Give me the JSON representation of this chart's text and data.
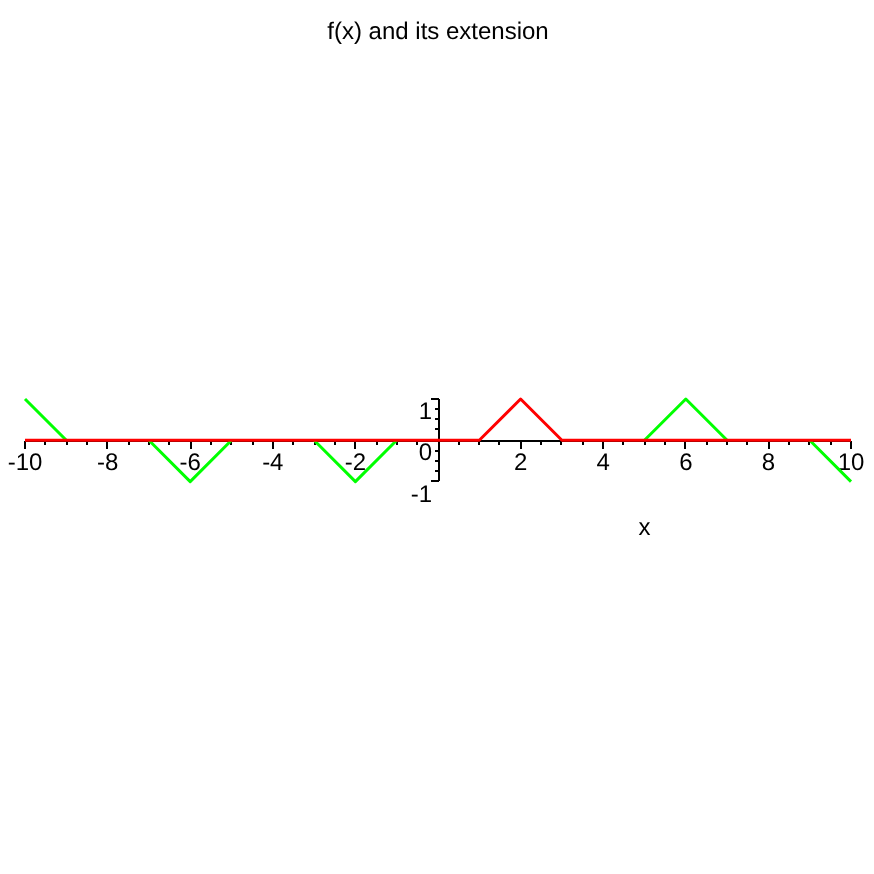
{
  "chart_data": {
    "type": "line",
    "title": "f(x) and its extension",
    "xlabel": "x",
    "xlim": [
      -10,
      10
    ],
    "ylim": [
      -1,
      1
    ],
    "xticks": [
      -10,
      -8,
      -6,
      -4,
      -2,
      2,
      4,
      6,
      8,
      10
    ],
    "yticks": [
      -1,
      0,
      1
    ],
    "grid": false,
    "series": [
      {
        "color": "#00ff00",
        "x": [
          -10,
          -9,
          -8,
          -7,
          -6,
          -5,
          -4,
          -3,
          -2,
          -1,
          0,
          1,
          2,
          3,
          4,
          5,
          6,
          7,
          8,
          9,
          10
        ],
        "values": [
          1,
          0,
          null,
          0,
          -1,
          0,
          null,
          0,
          -1,
          0,
          null,
          null,
          null,
          null,
          null,
          0,
          1,
          0,
          null,
          0,
          -1
        ]
      },
      {
        "color": "#ff0000",
        "x": [
          -10,
          1,
          2,
          3,
          10
        ],
        "values": [
          0,
          0,
          1,
          0,
          0
        ]
      }
    ]
  }
}
